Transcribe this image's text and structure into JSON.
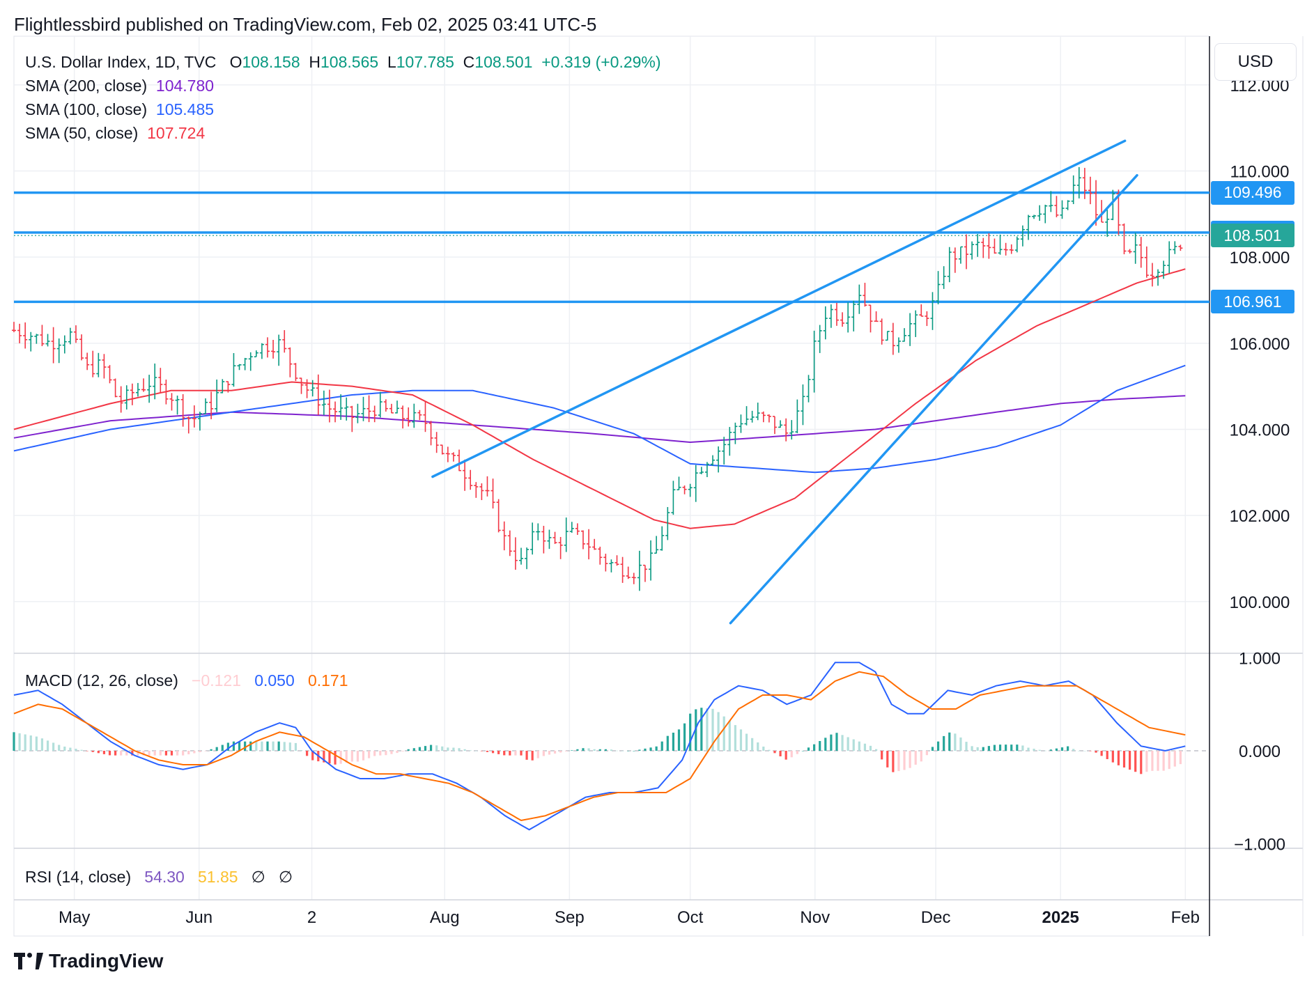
{
  "header": {
    "published": "Flightlessbird published on TradingView.com, Feb 02, 2025 03:41 UTC-5"
  },
  "footer": {
    "brand": "TradingView"
  },
  "legend": {
    "symbol": "U.S. Dollar Index, 1D, TVC",
    "open_label": "O",
    "open": "108.158",
    "high_label": "H",
    "high": "108.565",
    "low_label": "L",
    "low": "107.785",
    "close_label": "C",
    "close": "108.501",
    "change": "+0.319 (+0.29%)",
    "sma200_label": "SMA (200, close)",
    "sma200_value": "104.780",
    "sma100_label": "SMA (100, close)",
    "sma100_value": "105.485",
    "sma50_label": "SMA (50, close)",
    "sma50_value": "107.724",
    "macd_label": "MACD (12, 26, close)",
    "macd_hist": "−0.121",
    "macd_line": "0.050",
    "macd_signal": "0.171",
    "rsi_label": "RSI (14, close)",
    "rsi_value": "54.30",
    "rsi_ma": "51.85",
    "rsi_na1": "∅",
    "rsi_na2": "∅"
  },
  "currency": "USD",
  "colors": {
    "up": "#089981",
    "down": "#f23645",
    "sma200": "#7e22ce",
    "sma100": "#2962ff",
    "sma50": "#f23645",
    "trend": "#2196f3",
    "macd": "#2962ff",
    "signal": "#ff6d00",
    "hist_up_strong": "#26a69a",
    "hist_up_weak": "#b2dfdb",
    "hist_down_strong": "#ff5252",
    "hist_down_weak": "#ffcdd2",
    "rsi_value": "#7e57c2",
    "rsi_ma": "#fbc02d"
  },
  "chart_data": {
    "type": "line",
    "title": "U.S. Dollar Index, 1D, TVC",
    "y_axis": {
      "ticks": [
        "112.000",
        "110.000",
        "108.000",
        "106.000",
        "104.000",
        "102.000",
        "100.000"
      ],
      "tick_values": [
        112,
        110,
        108,
        106,
        104,
        102,
        100
      ],
      "range": [
        98.8,
        113.0
      ]
    },
    "x_axis": {
      "labels": [
        "May",
        "Jun",
        "2",
        "Aug",
        "Sep",
        "Oct",
        "Nov",
        "Dec",
        "2025",
        "Feb"
      ],
      "label_days": [
        1,
        32,
        60,
        93,
        124,
        154,
        185,
        215,
        246,
        277
      ],
      "range_days": [
        -14,
        283
      ]
    },
    "price_tags": [
      {
        "label": "109.496",
        "value": 109.496,
        "kind": "level"
      },
      {
        "label": "108.571",
        "value": 108.571,
        "kind": "level"
      },
      {
        "label": "108.501",
        "value": 108.501,
        "kind": "last"
      },
      {
        "label": "106.961",
        "value": 106.961,
        "kind": "level"
      }
    ],
    "horizontal_levels": [
      109.496,
      108.571,
      106.961
    ],
    "trendlines": [
      {
        "from": [
          90,
          102.9
        ],
        "to": [
          262,
          110.7
        ]
      },
      {
        "from": [
          164,
          99.5
        ],
        "to": [
          265,
          109.9
        ]
      }
    ],
    "price": {
      "days": [
        -14,
        -10,
        -5,
        0,
        4,
        8,
        12,
        16,
        20,
        25,
        30,
        35,
        40,
        46,
        52,
        58,
        64,
        70,
        76,
        82,
        88,
        93,
        96,
        100,
        104,
        108,
        112,
        116,
        120,
        124,
        128,
        132,
        136,
        140,
        145,
        150,
        154,
        158,
        162,
        166,
        170,
        174,
        178,
        182,
        185,
        188,
        192,
        196,
        200,
        204,
        208,
        212,
        215,
        218,
        222,
        226,
        230,
        234,
        238,
        242,
        246,
        250,
        253,
        256,
        259,
        262,
        265,
        268,
        271,
        274,
        277
      ],
      "values": [
        106.3,
        106.2,
        106.0,
        106.2,
        105.4,
        105.5,
        104.6,
        104.9,
        105.1,
        104.8,
        104.2,
        104.6,
        105.3,
        105.9,
        106.0,
        105.0,
        104.5,
        104.3,
        104.5,
        104.3,
        104.2,
        103.4,
        103.2,
        102.8,
        102.4,
        101.4,
        100.9,
        101.7,
        101.3,
        101.6,
        101.4,
        101.0,
        100.8,
        100.7,
        101.0,
        102.5,
        102.8,
        103.3,
        103.6,
        104.2,
        104.3,
        104.2,
        103.9,
        104.6,
        106.0,
        106.8,
        106.6,
        107.2,
        106.4,
        106.0,
        106.4,
        106.6,
        107.0,
        108.0,
        108.1,
        108.3,
        108.0,
        108.3,
        109.0,
        109.2,
        108.9,
        109.8,
        109.5,
        108.7,
        109.3,
        107.9,
        108.2,
        107.6,
        107.9,
        108.1,
        108.501
      ]
    },
    "series": [
      {
        "name": "SMA (200, close)",
        "days": [
          -14,
          10,
          40,
          70,
          100,
          130,
          154,
          170,
          185,
          200,
          215,
          230,
          246,
          260,
          277
        ],
        "values": [
          103.8,
          104.2,
          104.4,
          104.3,
          104.1,
          103.9,
          103.7,
          103.8,
          103.9,
          104.0,
          104.2,
          104.4,
          104.6,
          104.7,
          104.78
        ]
      },
      {
        "name": "SMA (100, close)",
        "days": [
          -14,
          10,
          40,
          70,
          85,
          100,
          120,
          140,
          154,
          170,
          185,
          200,
          215,
          230,
          246,
          260,
          277
        ],
        "values": [
          103.5,
          104.0,
          104.4,
          104.8,
          104.9,
          104.9,
          104.5,
          103.9,
          103.2,
          103.1,
          103.0,
          103.1,
          103.3,
          103.6,
          104.1,
          104.9,
          105.485
        ]
      },
      {
        "name": "SMA (50, close)",
        "days": [
          -14,
          10,
          25,
          40,
          55,
          70,
          85,
          100,
          115,
          130,
          145,
          154,
          165,
          180,
          195,
          210,
          225,
          240,
          255,
          265,
          277
        ],
        "values": [
          104.0,
          104.6,
          104.9,
          104.9,
          105.1,
          105.0,
          104.8,
          104.1,
          103.3,
          102.6,
          101.9,
          101.7,
          101.8,
          102.4,
          103.5,
          104.6,
          105.6,
          106.4,
          107.0,
          107.4,
          107.724
        ]
      }
    ],
    "macd": {
      "y_axis": {
        "ticks": [
          "1.000",
          "0.000",
          "−1.000"
        ],
        "tick_values": [
          1,
          0,
          -1
        ],
        "range": [
          -1.05,
          1.05
        ]
      },
      "macd_line": {
        "days": [
          -14,
          -8,
          -2,
          4,
          10,
          16,
          22,
          28,
          34,
          40,
          46,
          52,
          56,
          60,
          66,
          72,
          78,
          84,
          90,
          96,
          102,
          108,
          114,
          120,
          124,
          128,
          134,
          140,
          146,
          152,
          156,
          160,
          166,
          172,
          178,
          184,
          190,
          196,
          200,
          204,
          208,
          212,
          218,
          224,
          230,
          236,
          242,
          248,
          254,
          260,
          266,
          272,
          277
        ],
        "values": [
          0.6,
          0.65,
          0.5,
          0.3,
          0.1,
          -0.05,
          -0.15,
          -0.2,
          -0.15,
          0.05,
          0.2,
          0.3,
          0.25,
          0.0,
          -0.2,
          -0.3,
          -0.3,
          -0.25,
          -0.25,
          -0.35,
          -0.5,
          -0.7,
          -0.85,
          -0.7,
          -0.6,
          -0.5,
          -0.45,
          -0.45,
          -0.4,
          -0.1,
          0.3,
          0.55,
          0.7,
          0.65,
          0.5,
          0.6,
          0.95,
          0.95,
          0.85,
          0.5,
          0.4,
          0.4,
          0.65,
          0.6,
          0.7,
          0.75,
          0.7,
          0.75,
          0.6,
          0.3,
          0.05,
          0.0,
          0.05
        ]
      },
      "signal_line": {
        "days": [
          -14,
          -8,
          -2,
          4,
          10,
          16,
          22,
          28,
          34,
          40,
          46,
          52,
          58,
          64,
          70,
          76,
          82,
          88,
          94,
          100,
          106,
          112,
          118,
          124,
          130,
          136,
          142,
          148,
          154,
          160,
          166,
          172,
          178,
          184,
          190,
          196,
          202,
          208,
          214,
          220,
          226,
          232,
          238,
          244,
          250,
          256,
          262,
          268,
          277
        ],
        "values": [
          0.4,
          0.5,
          0.45,
          0.3,
          0.15,
          0.0,
          -0.1,
          -0.15,
          -0.15,
          -0.05,
          0.1,
          0.2,
          0.15,
          0.0,
          -0.15,
          -0.25,
          -0.25,
          -0.3,
          -0.35,
          -0.45,
          -0.6,
          -0.75,
          -0.7,
          -0.6,
          -0.5,
          -0.45,
          -0.45,
          -0.45,
          -0.3,
          0.1,
          0.45,
          0.6,
          0.6,
          0.55,
          0.75,
          0.85,
          0.8,
          0.6,
          0.45,
          0.45,
          0.6,
          0.65,
          0.7,
          0.7,
          0.7,
          0.55,
          0.4,
          0.25,
          0.171
        ]
      }
    },
    "rsi": {
      "value": 54.3,
      "ma": 51.85
    }
  }
}
